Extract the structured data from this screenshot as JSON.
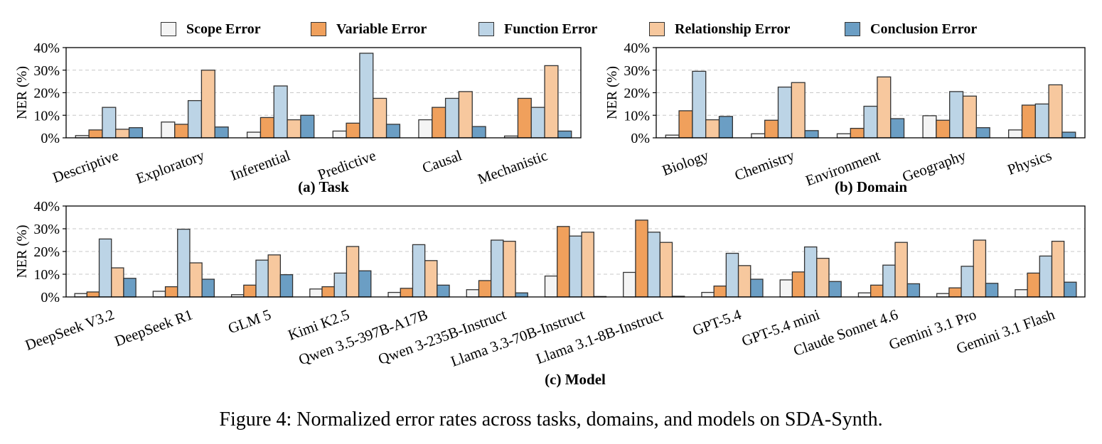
{
  "legend": [
    {
      "label": "Scope Error",
      "color": "#f4f4f4"
    },
    {
      "label": "Variable Error",
      "color": "#f0a05c"
    },
    {
      "label": "Function Error",
      "color": "#bcd4e6"
    },
    {
      "label": "Relationship Error",
      "color": "#f7c89e"
    },
    {
      "label": "Conclusion Error",
      "color": "#6b9ec4"
    }
  ],
  "caption": "Figure 4: Normalized error rates across tasks, domains, and models on SDA-Synth.",
  "chart_data": [
    {
      "type": "bar",
      "title": "(a) Task",
      "xlabel": "",
      "ylabel": "NER (%)",
      "ylim": [
        0,
        40
      ],
      "yticks": [
        "0%",
        "10%",
        "20%",
        "30%",
        "40%"
      ],
      "grid": "horizontal dashed",
      "categories": [
        "Descriptive",
        "Exploratory",
        "Inferential",
        "Predictive",
        "Causal",
        "Mechanistic"
      ],
      "series": [
        {
          "name": "Scope Error",
          "values": [
            1.0,
            7.0,
            2.5,
            3.0,
            8.0,
            0.8
          ]
        },
        {
          "name": "Variable Error",
          "values": [
            3.5,
            6.0,
            9.0,
            6.5,
            13.5,
            17.5
          ]
        },
        {
          "name": "Function Error",
          "values": [
            13.5,
            16.5,
            23.0,
            37.5,
            17.5,
            13.5
          ]
        },
        {
          "name": "Relationship Error",
          "values": [
            3.8,
            30.0,
            8.0,
            17.5,
            20.5,
            32.0
          ]
        },
        {
          "name": "Conclusion Error",
          "values": [
            4.5,
            4.8,
            10.0,
            6.0,
            5.0,
            3.0
          ]
        }
      ]
    },
    {
      "type": "bar",
      "title": "(b) Domain",
      "xlabel": "",
      "ylabel": "NER (%)",
      "ylim": [
        0,
        40
      ],
      "yticks": [
        "0%",
        "10%",
        "20%",
        "30%",
        "40%"
      ],
      "grid": "horizontal dashed",
      "categories": [
        "Biology",
        "Chemistry",
        "Environment",
        "Geography",
        "Physics"
      ],
      "series": [
        {
          "name": "Scope Error",
          "values": [
            1.2,
            1.8,
            1.8,
            9.8,
            3.5
          ]
        },
        {
          "name": "Variable Error",
          "values": [
            12.0,
            7.8,
            4.2,
            7.8,
            14.5
          ]
        },
        {
          "name": "Function Error",
          "values": [
            29.5,
            22.5,
            14.0,
            20.5,
            15.0
          ]
        },
        {
          "name": "Relationship Error",
          "values": [
            8.0,
            24.5,
            27.0,
            18.5,
            23.5
          ]
        },
        {
          "name": "Conclusion Error",
          "values": [
            9.5,
            3.2,
            8.5,
            4.5,
            2.5
          ]
        }
      ]
    },
    {
      "type": "bar",
      "title": "(c) Model",
      "xlabel": "",
      "ylabel": "NER (%)",
      "ylim": [
        0,
        40
      ],
      "yticks": [
        "0%",
        "10%",
        "20%",
        "30%",
        "40%"
      ],
      "grid": "horizontal dashed",
      "categories": [
        "DeepSeek V3.2",
        "DeepSeek R1",
        "GLM 5",
        "Kimi K2.5",
        "Qwen 3.5-397B-A17B",
        "Qwen 3-235B-Instruct",
        "Llama 3.3-70B-Instruct",
        "Llama 3.1-8B-Instruct",
        "GPT-5.4",
        "GPT-5.4 mini",
        "Claude Sonnet 4.6",
        "Gemini 3.1 Pro",
        "Gemini 3.1 Flash"
      ],
      "series": [
        {
          "name": "Scope Error",
          "values": [
            1.5,
            2.5,
            1.0,
            3.5,
            2.0,
            3.2,
            9.2,
            10.8,
            2.0,
            7.5,
            1.8,
            1.5,
            3.2
          ]
        },
        {
          "name": "Variable Error",
          "values": [
            2.2,
            4.5,
            5.2,
            4.5,
            3.8,
            7.2,
            31.0,
            33.8,
            4.8,
            11.0,
            5.2,
            4.0,
            10.5
          ]
        },
        {
          "name": "Function Error",
          "values": [
            25.5,
            29.8,
            16.2,
            10.5,
            23.0,
            25.0,
            26.8,
            28.5,
            19.2,
            22.0,
            14.0,
            13.5,
            18.0
          ]
        },
        {
          "name": "Relationship Error",
          "values": [
            12.8,
            15.0,
            18.5,
            22.2,
            16.0,
            24.5,
            28.5,
            24.0,
            13.8,
            17.0,
            24.0,
            25.0,
            24.5
          ]
        },
        {
          "name": "Conclusion Error",
          "values": [
            8.2,
            7.8,
            9.8,
            11.5,
            5.2,
            1.8,
            0.2,
            0.3,
            7.8,
            6.8,
            5.8,
            6.0,
            6.5
          ]
        }
      ]
    }
  ]
}
